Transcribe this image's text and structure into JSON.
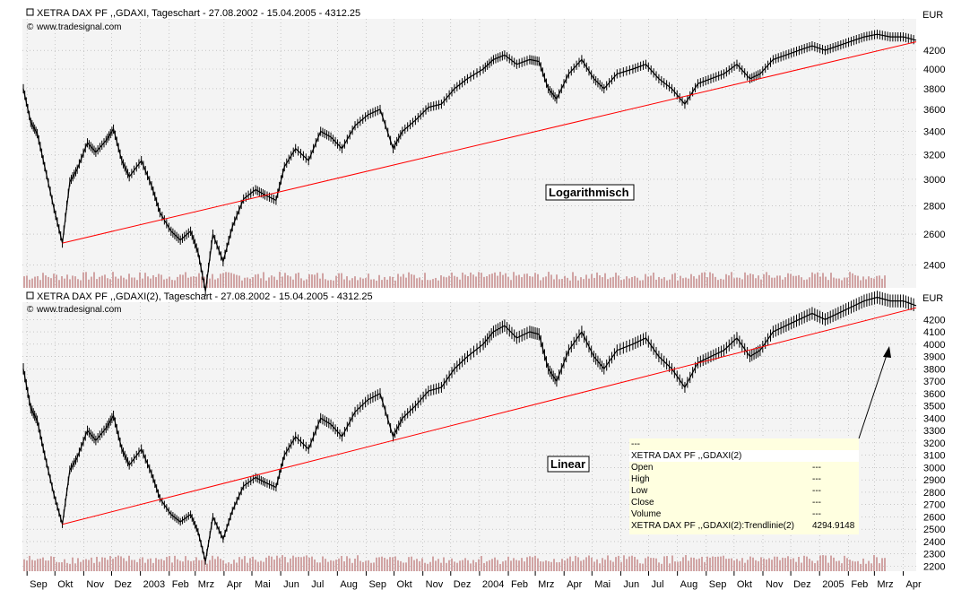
{
  "panels": [
    {
      "title": "XETRA DAX PF ,,GDAXI, Tageschart - 27.08.2002 - 15.04.2005 - 4312.25",
      "credit": "www.tradesignal.com",
      "currency": "EUR",
      "label": "Logarithmisch",
      "scale": "log",
      "ylim": [
        2260,
        4560
      ],
      "yticks": [
        2400,
        2600,
        2800,
        3000,
        3200,
        3400,
        3600,
        3800,
        4000,
        4200
      ]
    },
    {
      "title": "XETRA DAX PF ,,GDAXI(2), Tageschart - 27.08.2002 - 15.04.2005 - 4312.25",
      "credit": "www.tradesignal.com",
      "currency": "EUR",
      "label": "Linear",
      "scale": "linear",
      "ylim": [
        2160,
        4340
      ],
      "yticks": [
        2200,
        2300,
        2400,
        2500,
        2600,
        2700,
        2800,
        2900,
        3000,
        3100,
        3200,
        3300,
        3400,
        3500,
        3600,
        3700,
        3800,
        3900,
        4000,
        4100,
        4200
      ]
    }
  ],
  "x_axis": {
    "ticks": [
      "Sep",
      "Okt",
      "Nov",
      "Dez",
      "2003",
      "Feb",
      "Mrz",
      "Apr",
      "Mai",
      "Jun",
      "Jul",
      "Aug",
      "Sep",
      "Okt",
      "Nov",
      "Dez",
      "2004",
      "Feb",
      "Mrz",
      "Apr",
      "Mai",
      "Jun",
      "Jul",
      "Aug",
      "Sep",
      "Okt",
      "Nov",
      "Dez",
      "2005",
      "Feb",
      "Mrz",
      "Apr"
    ]
  },
  "infobox": {
    "rows": [
      {
        "label": "---",
        "value": ""
      },
      {
        "label": "XETRA DAX PF ,,GDAXI(2)",
        "value": ""
      },
      {
        "label": "Open",
        "value": "---"
      },
      {
        "label": "High",
        "value": "---"
      },
      {
        "label": "Low",
        "value": "---"
      },
      {
        "label": "Close",
        "value": "---"
      },
      {
        "label": "Volume",
        "value": "---"
      },
      {
        "label": "XETRA DAX PF ,,GDAXI(2):Trendlinie(2)",
        "value": "4294.9148"
      }
    ]
  },
  "colors": {
    "price": "#000000",
    "trendline": "#ff0000",
    "volume": "#c89090",
    "grid": "#aaaaaa",
    "panel_bg": "#f4f4f4"
  },
  "chart_data": {
    "type": "line",
    "series": [
      {
        "points": [
          [
            "2002-08-28",
            3800
          ],
          [
            "2002-09-05",
            3480
          ],
          [
            "2002-09-12",
            3380
          ],
          [
            "2002-09-20",
            3100
          ],
          [
            "2002-09-30",
            2780
          ],
          [
            "2002-10-09",
            2540
          ],
          [
            "2002-10-17",
            2980
          ],
          [
            "2002-10-25",
            3080
          ],
          [
            "2002-11-05",
            3300
          ],
          [
            "2002-11-14",
            3220
          ],
          [
            "2002-11-25",
            3320
          ],
          [
            "2002-12-03",
            3420
          ],
          [
            "2002-12-12",
            3150
          ],
          [
            "2002-12-20",
            3020
          ],
          [
            "2003-01-02",
            3150
          ],
          [
            "2003-01-13",
            2950
          ],
          [
            "2003-01-22",
            2750
          ],
          [
            "2003-02-03",
            2620
          ],
          [
            "2003-02-13",
            2560
          ],
          [
            "2003-02-24",
            2620
          ],
          [
            "2003-03-04",
            2480
          ],
          [
            "2003-03-12",
            2240
          ],
          [
            "2003-03-20",
            2600
          ],
          [
            "2003-03-31",
            2420
          ],
          [
            "2003-04-10",
            2650
          ],
          [
            "2003-04-22",
            2850
          ],
          [
            "2003-05-05",
            2920
          ],
          [
            "2003-05-15",
            2880
          ],
          [
            "2003-05-27",
            2840
          ],
          [
            "2003-06-05",
            3100
          ],
          [
            "2003-06-17",
            3250
          ],
          [
            "2003-07-01",
            3150
          ],
          [
            "2003-07-14",
            3400
          ],
          [
            "2003-07-25",
            3350
          ],
          [
            "2003-08-06",
            3250
          ],
          [
            "2003-08-20",
            3450
          ],
          [
            "2003-09-03",
            3550
          ],
          [
            "2003-09-16",
            3600
          ],
          [
            "2003-09-30",
            3250
          ],
          [
            "2003-10-10",
            3400
          ],
          [
            "2003-10-24",
            3500
          ],
          [
            "2003-11-07",
            3620
          ],
          [
            "2003-11-21",
            3650
          ],
          [
            "2003-12-05",
            3800
          ],
          [
            "2003-12-19",
            3900
          ],
          [
            "2004-01-05",
            4000
          ],
          [
            "2004-01-16",
            4100
          ],
          [
            "2004-01-28",
            4150
          ],
          [
            "2004-02-10",
            4050
          ],
          [
            "2004-02-24",
            4100
          ],
          [
            "2004-03-05",
            4080
          ],
          [
            "2004-03-15",
            3800
          ],
          [
            "2004-03-24",
            3700
          ],
          [
            "2004-04-06",
            3950
          ],
          [
            "2004-04-20",
            4100
          ],
          [
            "2004-05-03",
            3900
          ],
          [
            "2004-05-14",
            3800
          ],
          [
            "2004-05-28",
            3950
          ],
          [
            "2004-06-14",
            4000
          ],
          [
            "2004-06-28",
            4050
          ],
          [
            "2004-07-12",
            3900
          ],
          [
            "2004-07-26",
            3800
          ],
          [
            "2004-08-09",
            3650
          ],
          [
            "2004-08-23",
            3850
          ],
          [
            "2004-09-06",
            3900
          ],
          [
            "2004-09-20",
            3950
          ],
          [
            "2004-10-04",
            4050
          ],
          [
            "2004-10-18",
            3900
          ],
          [
            "2004-10-29",
            3950
          ],
          [
            "2004-11-12",
            4100
          ],
          [
            "2004-11-26",
            4150
          ],
          [
            "2004-12-10",
            4200
          ],
          [
            "2004-12-24",
            4250
          ],
          [
            "2005-01-07",
            4200
          ],
          [
            "2005-01-21",
            4250
          ],
          [
            "2005-02-04",
            4300
          ],
          [
            "2005-02-18",
            4350
          ],
          [
            "2005-03-04",
            4380
          ],
          [
            "2005-03-18",
            4350
          ],
          [
            "2005-04-01",
            4350
          ],
          [
            "2005-04-15",
            4312
          ]
        ]
      }
    ],
    "trendline": {
      "from": [
        "2002-10-09",
        2540
      ],
      "to": [
        "2005-04-15",
        4295
      ]
    },
    "xlim": [
      "2002-08-27",
      "2005-04-15"
    ]
  }
}
